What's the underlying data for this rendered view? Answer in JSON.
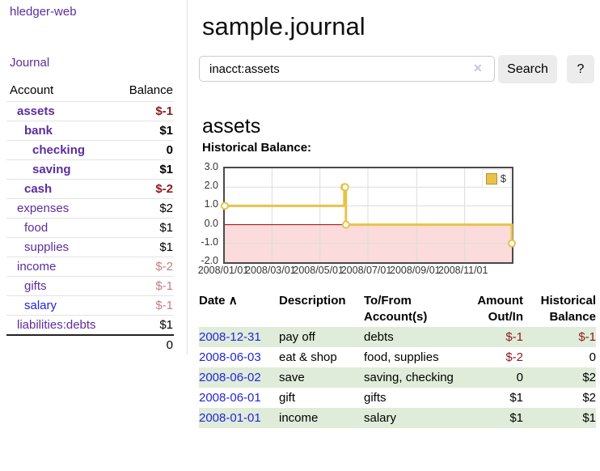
{
  "colors": {
    "purple_link": "#5b2d9e",
    "blue_link": "#2424dd",
    "negative_strong": "#8c1a1a",
    "negative_soft": "#c07f7f",
    "row_green": "#dfecd9",
    "button_bg": "#ececec",
    "chart_gold": "#e8c24a",
    "chart_gold_border": "#b59427",
    "chart_pink": "#fbdbdb",
    "chart_zero_line": "#990000"
  },
  "sidebar": {
    "app_title": "hledger-web",
    "nav": {
      "journal_label": "Journal"
    },
    "accounts_table": {
      "headers": {
        "account": "Account",
        "balance": "Balance"
      },
      "rows": [
        {
          "name": "assets",
          "indent": 1,
          "bold": true,
          "link_color": "purple",
          "balance": "$-1",
          "balance_style": "neg-strong"
        },
        {
          "name": "bank",
          "indent": 2,
          "bold": true,
          "link_color": "purple",
          "balance": "$1",
          "balance_style": "plain"
        },
        {
          "name": "checking",
          "indent": 3,
          "bold": true,
          "link_color": "purple",
          "balance": "0",
          "balance_style": "plain"
        },
        {
          "name": "saving",
          "indent": 3,
          "bold": true,
          "link_color": "purple",
          "balance": "$1",
          "balance_style": "plain"
        },
        {
          "name": "cash",
          "indent": 2,
          "bold": true,
          "link_color": "purple",
          "balance": "$-2",
          "balance_style": "neg-strong"
        },
        {
          "name": "expenses",
          "indent": 1,
          "bold": false,
          "link_color": "purple",
          "balance": "$2",
          "balance_style": "plain"
        },
        {
          "name": "food",
          "indent": 2,
          "bold": false,
          "link_color": "purple",
          "balance": "$1",
          "balance_style": "plain"
        },
        {
          "name": "supplies",
          "indent": 2,
          "bold": false,
          "link_color": "purple",
          "balance": "$1",
          "balance_style": "plain"
        },
        {
          "name": "income",
          "indent": 1,
          "bold": false,
          "link_color": "purple",
          "balance": "$-2",
          "balance_style": "neg-soft"
        },
        {
          "name": "gifts",
          "indent": 2,
          "bold": false,
          "link_color": "purple",
          "balance": "$-1",
          "balance_style": "neg-soft"
        },
        {
          "name": "salary",
          "indent": 2,
          "bold": false,
          "link_color": "blue",
          "balance": "$-1",
          "balance_style": "neg-soft"
        },
        {
          "name": "liabilities:debts",
          "indent": 1,
          "bold": false,
          "link_color": "purple",
          "balance": "$1",
          "balance_style": "plain"
        }
      ],
      "total": "0"
    }
  },
  "main": {
    "title": "sample.journal",
    "search": {
      "value": "inacct:assets",
      "clear_icon": "✕",
      "button_label": "Search",
      "help_label": "?"
    },
    "account_heading": "assets",
    "chart_label": "Historical Balance:"
  },
  "chart_data": {
    "type": "line",
    "title": "Historical Balance",
    "step": true,
    "grid": true,
    "ylim": [
      -2,
      3
    ],
    "xlim_days": [
      0,
      365
    ],
    "y_ticks": [
      {
        "value": 3,
        "label": "3.0"
      },
      {
        "value": 2,
        "label": "2.0"
      },
      {
        "value": 1,
        "label": "1.0"
      },
      {
        "value": 0,
        "label": "0.0"
      },
      {
        "value": -1,
        "label": "-1.0"
      },
      {
        "value": -2,
        "label": "-2.0"
      }
    ],
    "x_ticks": [
      {
        "day": 0,
        "label": "2008/01/01"
      },
      {
        "day": 60,
        "label": "2008/03/01"
      },
      {
        "day": 121,
        "label": "2008/05/01"
      },
      {
        "day": 182,
        "label": "2008/07/01"
      },
      {
        "day": 244,
        "label": "2008/09/01"
      },
      {
        "day": 305,
        "label": "2008/11/01"
      }
    ],
    "series": [
      {
        "name": "$",
        "color": "#e8c24a",
        "points": [
          {
            "date": "2008-01-01",
            "x_day": 0,
            "y": 1
          },
          {
            "date": "2008-06-01",
            "x_day": 152,
            "y": 2
          },
          {
            "date": "2008-06-02",
            "x_day": 153,
            "y": 2
          },
          {
            "date": "2008-06-03",
            "x_day": 154,
            "y": 0
          },
          {
            "date": "2008-12-31",
            "x_day": 365,
            "y": -1
          }
        ]
      }
    ],
    "legend": {
      "label": "$",
      "position": "ne"
    },
    "negative_region_color": "#fbdbdb",
    "zero_line_color": "#990000"
  },
  "register": {
    "headers": {
      "date": "Date",
      "description": "Description",
      "accounts": "To/From Account(s)",
      "amount": "Amount Out/In",
      "balance": "Historical Balance"
    },
    "sort_icon": "∧",
    "rows": [
      {
        "date": "2008-12-31",
        "description": "pay off",
        "accounts": "debts",
        "amount": "$-1",
        "amount_neg": true,
        "balance": "$-1",
        "balance_neg": true
      },
      {
        "date": "2008-06-03",
        "description": "eat & shop",
        "accounts": "food, supplies",
        "amount": "$-2",
        "amount_neg": true,
        "balance": "0",
        "balance_neg": false
      },
      {
        "date": "2008-06-02",
        "description": "save",
        "accounts": "saving, checking",
        "amount": "0",
        "amount_neg": false,
        "balance": "$2",
        "balance_neg": false
      },
      {
        "date": "2008-06-01",
        "description": "gift",
        "accounts": "gifts",
        "amount": "$1",
        "amount_neg": false,
        "balance": "$2",
        "balance_neg": false
      },
      {
        "date": "2008-01-01",
        "description": "income",
        "accounts": "salary",
        "amount": "$1",
        "amount_neg": false,
        "balance": "$1",
        "balance_neg": false
      }
    ]
  }
}
